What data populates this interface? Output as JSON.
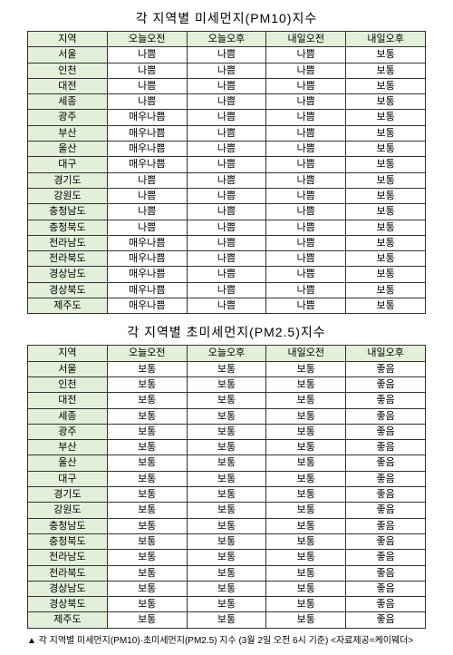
{
  "table1": {
    "title": "각 지역별 미세먼지(PM10)지수",
    "columns": [
      "지역",
      "오늘오전",
      "오늘오후",
      "내일오전",
      "내일오후"
    ],
    "rows": [
      [
        "서울",
        "나쁨",
        "나쁨",
        "나쁨",
        "보통"
      ],
      [
        "인천",
        "나쁨",
        "나쁨",
        "나쁨",
        "보통"
      ],
      [
        "대전",
        "나쁨",
        "나쁨",
        "나쁨",
        "보통"
      ],
      [
        "세종",
        "나쁨",
        "나쁨",
        "나쁨",
        "보통"
      ],
      [
        "광주",
        "매우나쁨",
        "나쁨",
        "나쁨",
        "보통"
      ],
      [
        "부산",
        "매우나쁨",
        "나쁨",
        "나쁨",
        "보통"
      ],
      [
        "울산",
        "매우나쁨",
        "나쁨",
        "나쁨",
        "보통"
      ],
      [
        "대구",
        "매우나쁨",
        "나쁨",
        "나쁨",
        "보통"
      ],
      [
        "경기도",
        "나쁨",
        "나쁨",
        "나쁨",
        "보통"
      ],
      [
        "강원도",
        "나쁨",
        "나쁨",
        "나쁨",
        "보통"
      ],
      [
        "충청남도",
        "나쁨",
        "나쁨",
        "나쁨",
        "보통"
      ],
      [
        "충청북도",
        "나쁨",
        "나쁨",
        "나쁨",
        "보통"
      ],
      [
        "전라남도",
        "매우나쁨",
        "나쁨",
        "나쁨",
        "보통"
      ],
      [
        "전라북도",
        "매우나쁨",
        "나쁨",
        "나쁨",
        "보통"
      ],
      [
        "경상남도",
        "매우나쁨",
        "나쁨",
        "나쁨",
        "보통"
      ],
      [
        "경상북도",
        "매우나쁨",
        "나쁨",
        "나쁨",
        "보통"
      ],
      [
        "제주도",
        "매우나쁨",
        "나쁨",
        "나쁨",
        "보통"
      ]
    ]
  },
  "table2": {
    "title": "각 지역별 초미세먼지(PM2.5)지수",
    "columns": [
      "지역",
      "오늘오전",
      "오늘오후",
      "내일오전",
      "내일오후"
    ],
    "rows": [
      [
        "서울",
        "보통",
        "보통",
        "보통",
        "좋음"
      ],
      [
        "인천",
        "보통",
        "보통",
        "보통",
        "좋음"
      ],
      [
        "대전",
        "보통",
        "보통",
        "보통",
        "좋음"
      ],
      [
        "세종",
        "보통",
        "보통",
        "보통",
        "좋음"
      ],
      [
        "광주",
        "보통",
        "보통",
        "보통",
        "좋음"
      ],
      [
        "부산",
        "보통",
        "보통",
        "보통",
        "좋음"
      ],
      [
        "울산",
        "보통",
        "보통",
        "보통",
        "좋음"
      ],
      [
        "대구",
        "보통",
        "보통",
        "보통",
        "좋음"
      ],
      [
        "경기도",
        "보통",
        "보통",
        "보통",
        "좋음"
      ],
      [
        "강원도",
        "보통",
        "보통",
        "보통",
        "좋음"
      ],
      [
        "충청남도",
        "보통",
        "보통",
        "보통",
        "좋음"
      ],
      [
        "충청북도",
        "보통",
        "보통",
        "보통",
        "좋음"
      ],
      [
        "전라남도",
        "보통",
        "보통",
        "보통",
        "좋음"
      ],
      [
        "전라북도",
        "보통",
        "보통",
        "보통",
        "좋음"
      ],
      [
        "경상남도",
        "보통",
        "보통",
        "보통",
        "좋음"
      ],
      [
        "경상북도",
        "보통",
        "보통",
        "보통",
        "좋음"
      ],
      [
        "제주도",
        "보통",
        "보통",
        "보통",
        "좋음"
      ]
    ]
  },
  "caption": "▲ 각 지역별 미세먼지(PM10)·초미세먼지(PM2.5) 지수 (3월 2일 오전 6시 기준) <자료제공=케이웨더>",
  "styling": {
    "header_bg": "#e2efd9",
    "border_color": "#333333",
    "font_size": "11px",
    "title_font_size": "14px",
    "col_widths": [
      "20%",
      "20%",
      "20%",
      "20%",
      "20%"
    ]
  }
}
